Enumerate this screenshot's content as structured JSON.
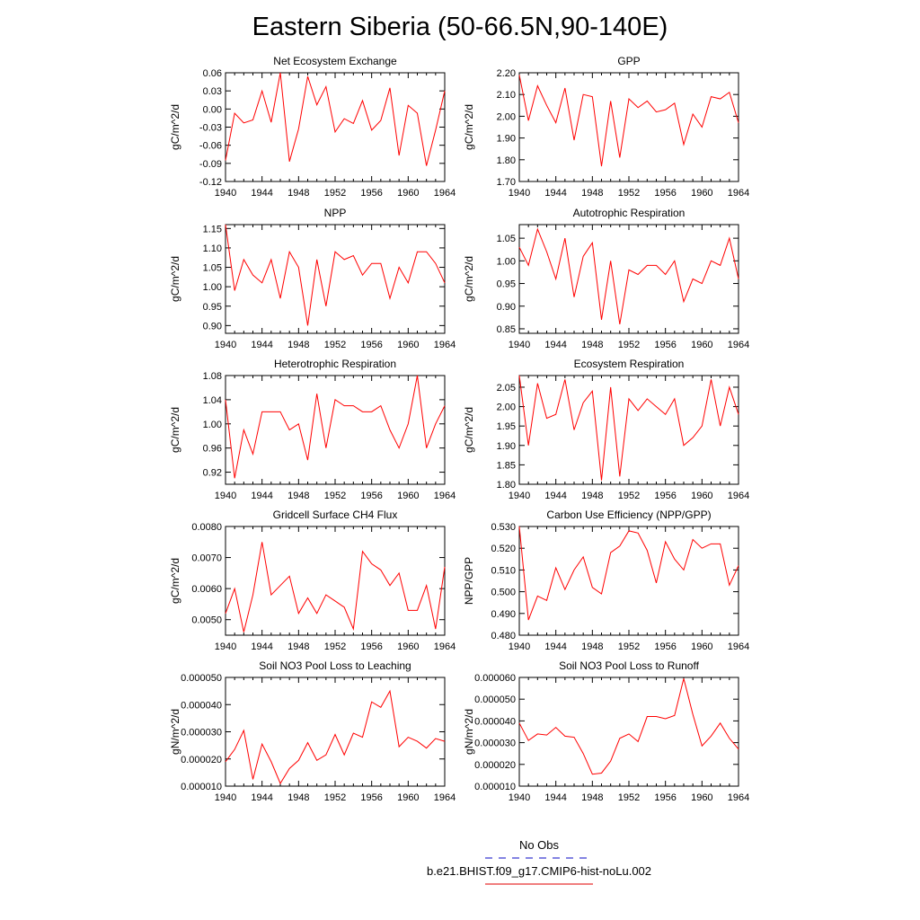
{
  "title": "Eastern Siberia (50-66.5N,90-140E)",
  "legend": {
    "entries": [
      {
        "label": "No Obs",
        "color": "#3b3bd0",
        "dash": true
      },
      {
        "label": "b.e21.BHIST.f09_g17.CMIP6-hist-noLu.002",
        "color": "#e83030",
        "dash": false
      }
    ]
  },
  "chart_data": [
    {
      "type": "line",
      "title": "Net Ecosystem Exchange",
      "ylabel": "gC/m^2/d",
      "ylim": [
        -0.12,
        0.06
      ],
      "yticks": [
        "0.06",
        "0.03",
        "0.00",
        "-0.03",
        "-0.06",
        "-0.09",
        "-0.12"
      ],
      "xlim": [
        1940,
        1964
      ],
      "xticks": [
        "1940",
        "1944",
        "1948",
        "1952",
        "1956",
        "1960",
        "1964"
      ],
      "x": [
        1940,
        1941,
        1942,
        1943,
        1944,
        1945,
        1946,
        1947,
        1948,
        1949,
        1950,
        1951,
        1952,
        1953,
        1954,
        1955,
        1956,
        1957,
        1958,
        1959,
        1960,
        1961,
        1962,
        1963,
        1964
      ],
      "series": [
        {
          "color": "#ff0000",
          "values": [
            -0.085,
            -0.007,
            -0.023,
            -0.018,
            0.03,
            -0.022,
            0.06,
            -0.087,
            -0.033,
            0.054,
            0.007,
            0.037,
            -0.038,
            -0.016,
            -0.024,
            0.014,
            -0.035,
            -0.019,
            0.035,
            -0.077,
            0.006,
            -0.007,
            -0.094,
            -0.035,
            0.03
          ]
        }
      ]
    },
    {
      "type": "line",
      "title": "GPP",
      "ylabel": "gC/m^2/d",
      "ylim": [
        1.7,
        2.2
      ],
      "yticks": [
        "2.20",
        "2.10",
        "2.00",
        "1.90",
        "1.80",
        "1.70"
      ],
      "xlim": [
        1940,
        1964
      ],
      "xticks": [
        "1940",
        "1944",
        "1948",
        "1952",
        "1956",
        "1960",
        "1964"
      ],
      "x": [
        1940,
        1941,
        1942,
        1943,
        1944,
        1945,
        1946,
        1947,
        1948,
        1949,
        1950,
        1951,
        1952,
        1953,
        1954,
        1955,
        1956,
        1957,
        1958,
        1959,
        1960,
        1961,
        1962,
        1963,
        1964
      ],
      "series": [
        {
          "color": "#ff0000",
          "values": [
            2.19,
            1.98,
            2.14,
            2.05,
            1.97,
            2.13,
            1.89,
            2.1,
            2.09,
            1.77,
            2.07,
            1.81,
            2.08,
            2.04,
            2.07,
            2.02,
            2.03,
            2.06,
            1.87,
            2.01,
            1.95,
            2.09,
            2.08,
            2.11,
            1.97
          ]
        }
      ]
    },
    {
      "type": "line",
      "title": "NPP",
      "ylabel": "gC/m^2/d",
      "ylim": [
        0.88,
        1.16
      ],
      "yticks": [
        "1.15",
        "1.10",
        "1.05",
        "1.00",
        "0.95",
        "0.90"
      ],
      "xlim": [
        1940,
        1964
      ],
      "xticks": [
        "1940",
        "1944",
        "1948",
        "1952",
        "1956",
        "1960",
        "1964"
      ],
      "x": [
        1940,
        1941,
        1942,
        1943,
        1944,
        1945,
        1946,
        1947,
        1948,
        1949,
        1950,
        1951,
        1952,
        1953,
        1954,
        1955,
        1956,
        1957,
        1958,
        1959,
        1960,
        1961,
        1962,
        1963,
        1964
      ],
      "series": [
        {
          "color": "#ff0000",
          "values": [
            1.16,
            0.99,
            1.07,
            1.03,
            1.01,
            1.07,
            0.97,
            1.09,
            1.05,
            0.9,
            1.07,
            0.95,
            1.09,
            1.07,
            1.08,
            1.03,
            1.06,
            1.06,
            0.97,
            1.05,
            1.01,
            1.09,
            1.09,
            1.06,
            1.01
          ]
        }
      ]
    },
    {
      "type": "line",
      "title": "Autotrophic Respiration",
      "ylabel": "gC/m^2/d",
      "ylim": [
        0.84,
        1.08
      ],
      "yticks": [
        "1.05",
        "1.00",
        "0.95",
        "0.90",
        "0.85"
      ],
      "xlim": [
        1940,
        1964
      ],
      "xticks": [
        "1940",
        "1944",
        "1948",
        "1952",
        "1956",
        "1960",
        "1964"
      ],
      "x": [
        1940,
        1941,
        1942,
        1943,
        1944,
        1945,
        1946,
        1947,
        1948,
        1949,
        1950,
        1951,
        1952,
        1953,
        1954,
        1955,
        1956,
        1957,
        1958,
        1959,
        1960,
        1961,
        1962,
        1963,
        1964
      ],
      "series": [
        {
          "color": "#ff0000",
          "values": [
            1.03,
            0.99,
            1.07,
            1.02,
            0.96,
            1.05,
            0.92,
            1.01,
            1.04,
            0.87,
            1.0,
            0.86,
            0.98,
            0.97,
            0.99,
            0.99,
            0.97,
            1.0,
            0.91,
            0.96,
            0.95,
            1.0,
            0.99,
            1.05,
            0.96
          ]
        }
      ]
    },
    {
      "type": "line",
      "title": "Heterotrophic Respiration",
      "ylabel": "gC/m^2/d",
      "ylim": [
        0.9,
        1.08
      ],
      "yticks": [
        "1.08",
        "1.04",
        "1.00",
        "0.96",
        "0.92"
      ],
      "xlim": [
        1940,
        1964
      ],
      "xticks": [
        "1940",
        "1944",
        "1948",
        "1952",
        "1956",
        "1960",
        "1964"
      ],
      "x": [
        1940,
        1941,
        1942,
        1943,
        1944,
        1945,
        1946,
        1947,
        1948,
        1949,
        1950,
        1951,
        1952,
        1953,
        1954,
        1955,
        1956,
        1957,
        1958,
        1959,
        1960,
        1961,
        1962,
        1963,
        1964
      ],
      "series": [
        {
          "color": "#ff0000",
          "values": [
            1.04,
            0.91,
            0.99,
            0.95,
            1.02,
            1.02,
            1.02,
            0.99,
            1.0,
            0.94,
            1.05,
            0.96,
            1.04,
            1.03,
            1.03,
            1.02,
            1.02,
            1.03,
            0.99,
            0.96,
            1.0,
            1.08,
            0.96,
            1.0,
            1.03
          ]
        }
      ]
    },
    {
      "type": "line",
      "title": "Ecosystem Respiration",
      "ylabel": "gC/m^2/d",
      "ylim": [
        1.8,
        2.08
      ],
      "yticks": [
        "2.05",
        "2.00",
        "1.95",
        "1.90",
        "1.85",
        "1.80"
      ],
      "xlim": [
        1940,
        1964
      ],
      "xticks": [
        "1940",
        "1944",
        "1948",
        "1952",
        "1956",
        "1960",
        "1964"
      ],
      "x": [
        1940,
        1941,
        1942,
        1943,
        1944,
        1945,
        1946,
        1947,
        1948,
        1949,
        1950,
        1951,
        1952,
        1953,
        1954,
        1955,
        1956,
        1957,
        1958,
        1959,
        1960,
        1961,
        1962,
        1963,
        1964
      ],
      "series": [
        {
          "color": "#ff0000",
          "values": [
            2.08,
            1.9,
            2.06,
            1.97,
            1.98,
            2.07,
            1.94,
            2.01,
            2.04,
            1.81,
            2.05,
            1.82,
            2.02,
            1.99,
            2.02,
            2.0,
            1.98,
            2.02,
            1.9,
            1.92,
            1.95,
            2.07,
            1.95,
            2.05,
            1.98
          ]
        }
      ]
    },
    {
      "type": "line",
      "title": "Gridcell Surface CH4 Flux",
      "ylabel": "gC/m^2/d",
      "ylim": [
        0.0045,
        0.008
      ],
      "yticks": [
        "0.0080",
        "0.0070",
        "0.0060",
        "0.0050"
      ],
      "xlim": [
        1940,
        1964
      ],
      "xticks": [
        "1940",
        "1944",
        "1948",
        "1952",
        "1956",
        "1960",
        "1964"
      ],
      "x": [
        1940,
        1941,
        1942,
        1943,
        1944,
        1945,
        1946,
        1947,
        1948,
        1949,
        1950,
        1951,
        1952,
        1953,
        1954,
        1955,
        1956,
        1957,
        1958,
        1959,
        1960,
        1961,
        1962,
        1963,
        1964
      ],
      "series": [
        {
          "color": "#ff0000",
          "values": [
            0.0052,
            0.006,
            0.0046,
            0.0058,
            0.0075,
            0.0058,
            0.0061,
            0.0064,
            0.0052,
            0.0057,
            0.0052,
            0.0058,
            0.0056,
            0.0054,
            0.0047,
            0.0072,
            0.0068,
            0.0066,
            0.0061,
            0.0065,
            0.0053,
            0.0053,
            0.0061,
            0.0047,
            0.0067
          ]
        }
      ]
    },
    {
      "type": "line",
      "title": "Carbon Use Efficiency (NPP/GPP)",
      "ylabel": "NPP/GPP",
      "ylim": [
        0.48,
        0.53
      ],
      "yticks": [
        "0.530",
        "0.520",
        "0.510",
        "0.500",
        "0.490",
        "0.480"
      ],
      "xlim": [
        1940,
        1964
      ],
      "xticks": [
        "1940",
        "1944",
        "1948",
        "1952",
        "1956",
        "1960",
        "1964"
      ],
      "x": [
        1940,
        1941,
        1942,
        1943,
        1944,
        1945,
        1946,
        1947,
        1948,
        1949,
        1950,
        1951,
        1952,
        1953,
        1954,
        1955,
        1956,
        1957,
        1958,
        1959,
        1960,
        1961,
        1962,
        1963,
        1964
      ],
      "series": [
        {
          "color": "#ff0000",
          "values": [
            0.53,
            0.487,
            0.498,
            0.496,
            0.511,
            0.501,
            0.51,
            0.516,
            0.502,
            0.499,
            0.518,
            0.521,
            0.528,
            0.527,
            0.519,
            0.504,
            0.523,
            0.515,
            0.51,
            0.524,
            0.52,
            0.522,
            0.522,
            0.503,
            0.512
          ]
        }
      ]
    },
    {
      "type": "line",
      "title": "Soil NO3 Pool Loss to Leaching",
      "ylabel": "gN/m^2/d",
      "ylim": [
        1e-05,
        5e-05
      ],
      "yticks": [
        "0.000050",
        "0.000040",
        "0.000030",
        "0.000020",
        "0.000010"
      ],
      "xlim": [
        1940,
        1964
      ],
      "xticks": [
        "1940",
        "1944",
        "1948",
        "1952",
        "1956",
        "1960",
        "1964"
      ],
      "x": [
        1940,
        1941,
        1942,
        1943,
        1944,
        1945,
        1946,
        1947,
        1948,
        1949,
        1950,
        1951,
        1952,
        1953,
        1954,
        1955,
        1956,
        1957,
        1958,
        1959,
        1960,
        1961,
        1962,
        1963,
        1964
      ],
      "series": [
        {
          "color": "#ff0000",
          "values": [
            1.9e-05,
            2.35e-05,
            3.05e-05,
            1.25e-05,
            2.55e-05,
            1.9e-05,
            1.1e-05,
            1.65e-05,
            1.95e-05,
            2.6e-05,
            1.95e-05,
            2.15e-05,
            2.9e-05,
            2.15e-05,
            2.95e-05,
            2.8e-05,
            4.1e-05,
            3.9e-05,
            4.5e-05,
            2.45e-05,
            2.8e-05,
            2.65e-05,
            2.4e-05,
            2.75e-05,
            2.65e-05
          ]
        }
      ]
    },
    {
      "type": "line",
      "title": "Soil NO3 Pool Loss to Runoff",
      "ylabel": "gN/m^2/d",
      "ylim": [
        1e-05,
        6e-05
      ],
      "yticks": [
        "0.000060",
        "0.000050",
        "0.000040",
        "0.000030",
        "0.000020",
        "0.000010"
      ],
      "xlim": [
        1940,
        1964
      ],
      "xticks": [
        "1940",
        "1944",
        "1948",
        "1952",
        "1956",
        "1960",
        "1964"
      ],
      "x": [
        1940,
        1941,
        1942,
        1943,
        1944,
        1945,
        1946,
        1947,
        1948,
        1949,
        1950,
        1951,
        1952,
        1953,
        1954,
        1955,
        1956,
        1957,
        1958,
        1959,
        1960,
        1961,
        1962,
        1963,
        1964
      ],
      "series": [
        {
          "color": "#ff0000",
          "values": [
            3.9e-05,
            3.1e-05,
            3.4e-05,
            3.35e-05,
            3.7e-05,
            3.3e-05,
            3.25e-05,
            2.5e-05,
            1.55e-05,
            1.6e-05,
            2.15e-05,
            3.2e-05,
            3.4e-05,
            3.05e-05,
            4.2e-05,
            4.2e-05,
            4.1e-05,
            4.25e-05,
            5.95e-05,
            4.3e-05,
            2.85e-05,
            3.3e-05,
            3.9e-05,
            3.2e-05,
            2.7e-05
          ]
        }
      ]
    }
  ]
}
